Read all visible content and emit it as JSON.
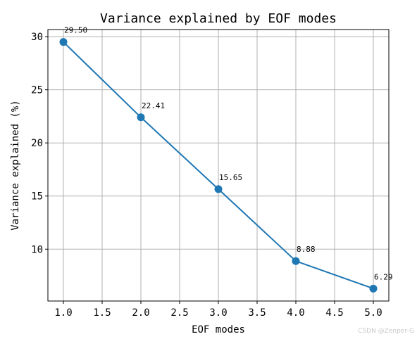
{
  "chart_data": {
    "type": "line",
    "title": "Variance explained by EOF modes",
    "xlabel": "EOF modes",
    "ylabel": "Variance explained (%)",
    "x": [
      1,
      2,
      3,
      4,
      5
    ],
    "series": [
      {
        "values": [
          29.5,
          22.41,
          15.65,
          8.88,
          6.29
        ],
        "color": "#1f77b4",
        "marker": "circle"
      }
    ],
    "data_labels": [
      "29.50",
      "22.41",
      "15.65",
      "8.88",
      "6.29"
    ],
    "xlim": [
      0.8,
      5.2
    ],
    "ylim": [
      5.12,
      30.67
    ],
    "x_ticks": [
      1.0,
      1.5,
      2.0,
      2.5,
      3.0,
      3.5,
      4.0,
      4.5,
      5.0
    ],
    "x_tick_labels": [
      "1.0",
      "1.5",
      "2.0",
      "2.5",
      "3.0",
      "3.5",
      "4.0",
      "4.5",
      "5.0"
    ],
    "y_ticks": [
      10,
      15,
      20,
      25,
      30
    ],
    "y_tick_labels": [
      "10",
      "15",
      "20",
      "25",
      "30"
    ],
    "grid": true,
    "grid_color": "#b0b0b0"
  },
  "watermark": "CSDN @Zenper-G"
}
